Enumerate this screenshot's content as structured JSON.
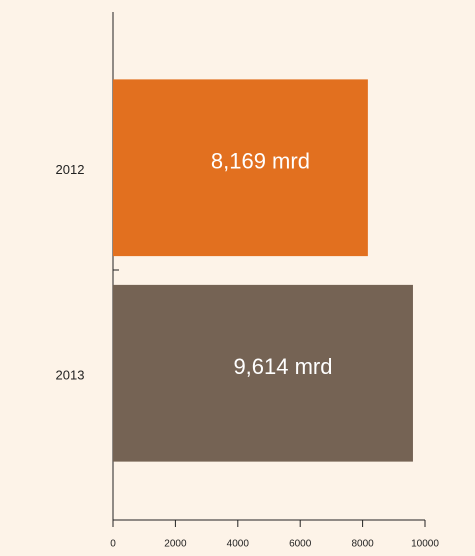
{
  "chart_data": {
    "type": "bar",
    "orientation": "horizontal",
    "categories": [
      "2012",
      "2013"
    ],
    "values": [
      8169,
      9614
    ],
    "value_labels": [
      "8,169 mrd",
      "9,614 mrd"
    ],
    "colors": [
      "#e2701f",
      "#756354"
    ],
    "xlim": [
      0,
      10000
    ],
    "xticks": [
      0,
      2000,
      4000,
      6000,
      8000,
      10000
    ]
  }
}
